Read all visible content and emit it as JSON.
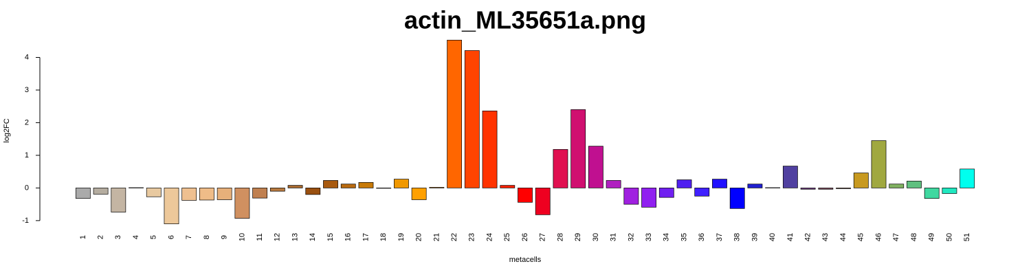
{
  "chart_data": {
    "type": "bar",
    "title": "actin_ML35651a.png",
    "x_label": "metacells",
    "y_label": "log2FC",
    "categories": [
      "1",
      "2",
      "3",
      "4",
      "5",
      "6",
      "7",
      "8",
      "9",
      "10",
      "11",
      "12",
      "13",
      "14",
      "15",
      "16",
      "17",
      "18",
      "19",
      "20",
      "21",
      "22",
      "23",
      "24",
      "25",
      "26",
      "27",
      "28",
      "29",
      "30",
      "31",
      "32",
      "33",
      "34",
      "35",
      "36",
      "37",
      "38",
      "39",
      "40",
      "41",
      "42",
      "43",
      "44",
      "45",
      "46",
      "47",
      "48",
      "49",
      "50",
      "51"
    ],
    "values": [
      -0.32,
      -0.19,
      -0.74,
      0.01,
      -0.27,
      -1.1,
      -0.38,
      -0.37,
      -0.36,
      -0.93,
      -0.31,
      -0.1,
      0.08,
      -0.2,
      0.23,
      0.12,
      0.17,
      -0.01,
      0.27,
      -0.36,
      0.02,
      4.53,
      4.21,
      2.36,
      0.08,
      -0.44,
      -0.82,
      1.18,
      2.4,
      1.28,
      0.23,
      -0.5,
      -0.59,
      -0.29,
      0.25,
      -0.25,
      0.27,
      -0.63,
      0.12,
      0.01,
      0.67,
      -0.04,
      -0.04,
      -0.02,
      0.46,
      1.45,
      0.12,
      0.21,
      -0.32,
      -0.17,
      0.58
    ],
    "colors": [
      "#aaaaaa",
      "#b5ada0",
      "#c4b5a3",
      "#d8c8b0",
      "#e8c9a0",
      "#edc89a",
      "#efc090",
      "#efbc88",
      "#e7b07a",
      "#d09060",
      "#c08050",
      "#b87a40",
      "#a86a30",
      "#9a5010",
      "#a85a10",
      "#b86a10",
      "#c87a08",
      "#d88800",
      "#f09800",
      "#ffa000",
      "#ff8c00",
      "#ff6600",
      "#ff4400",
      "#ff3300",
      "#ff2000",
      "#ff0000",
      "#ee0020",
      "#e01050",
      "#d01070",
      "#c01090",
      "#b020c0",
      "#a020e0",
      "#9020f0",
      "#7020f0",
      "#5020f0",
      "#4020ff",
      "#2010ff",
      "#0000ff",
      "#2020d0",
      "#3030b0",
      "#5040a0",
      "#704080",
      "#805060",
      "#906040",
      "#c89a20",
      "#a0a840",
      "#80b060",
      "#60c080",
      "#40d8a0",
      "#20e8c0",
      "#00ffee"
    ],
    "ylim": [
      -1.15,
      4.6
    ],
    "yticks": [
      -1,
      0,
      1,
      2,
      3,
      4
    ]
  }
}
